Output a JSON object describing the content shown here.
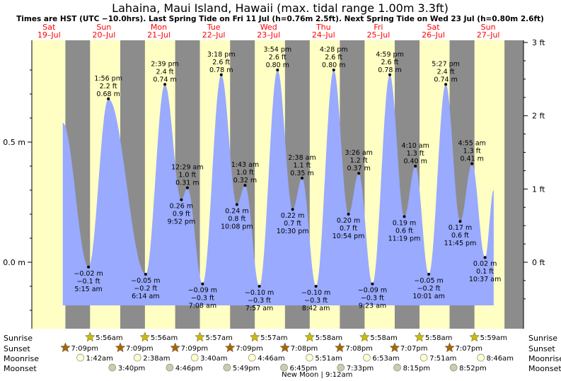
{
  "title": "Lahaina, Maui Island, Hawaii (max. tidal range 1.00m 3.3ft)",
  "subtitle": "Times are HST (UTC −10.0hrs). Last Spring Tide on Fri 11 Jul (h=0.76m 2.5ft). Next Spring Tide on Wed 23 Jul (h=0.80m 2.6ft)",
  "days": [
    {
      "dow": "Sat",
      "date": "19–Jul"
    },
    {
      "dow": "Sun",
      "date": "20–Jul"
    },
    {
      "dow": "Mon",
      "date": "21–Jul"
    },
    {
      "dow": "Tue",
      "date": "22–Jul"
    },
    {
      "dow": "Wed",
      "date": "23–Jul"
    },
    {
      "dow": "Thu",
      "date": "24–Jul"
    },
    {
      "dow": "Fri",
      "date": "25–Jul"
    },
    {
      "dow": "Sat",
      "date": "26–Jul"
    },
    {
      "dow": "Sun",
      "date": "27–Jul"
    }
  ],
  "colors": {
    "day": "#ffffc4",
    "night": "#8c8c8c",
    "water": "#99aaff",
    "sunrise": "#ccbb00",
    "sunset": "#aa6600",
    "day_label": "#ff0000"
  },
  "chart_data": {
    "type": "area",
    "y_unit_left": "m",
    "y_unit_right": "ft",
    "ylim_m": [
      -0.18,
      0.82
    ],
    "left_ticks": [
      "0.5 m",
      "0.0 m"
    ],
    "right_ticks": [
      "3 ft",
      "2 ft",
      "1 ft",
      "0 ft"
    ],
    "extremes": [
      {
        "day": 1,
        "time": "5:15 am",
        "m": "−0.02 m",
        "ft": "−0.1 ft",
        "h": -0.02,
        "type": "low"
      },
      {
        "day": 1,
        "time": "1:56 pm",
        "m": "0.68 m",
        "ft": "2.2 ft",
        "h": 0.68,
        "type": "high"
      },
      {
        "day": 2,
        "time": "6:14 am",
        "m": "−0.05 m",
        "ft": "−0.2 ft",
        "h": -0.05,
        "type": "low"
      },
      {
        "day": 2,
        "time": "2:39 pm",
        "m": "0.74 m",
        "ft": "2.4 ft",
        "h": 0.74,
        "type": "high"
      },
      {
        "day": 2,
        "time": "9:52 pm",
        "m": "0.26 m",
        "ft": "0.9 ft",
        "h": 0.26,
        "type": "low"
      },
      {
        "day": 3,
        "time": "12:29 am",
        "m": "0.31 m",
        "ft": "1.0 ft",
        "h": 0.31,
        "type": "high"
      },
      {
        "day": 3,
        "time": "7:08 am",
        "m": "−0.09 m",
        "ft": "−0.3 ft",
        "h": -0.09,
        "type": "low"
      },
      {
        "day": 3,
        "time": "3:18 pm",
        "m": "0.78 m",
        "ft": "2.6 ft",
        "h": 0.78,
        "type": "high"
      },
      {
        "day": 3,
        "time": "10:08 pm",
        "m": "0.24 m",
        "ft": "0.8 ft",
        "h": 0.24,
        "type": "low"
      },
      {
        "day": 4,
        "time": "1:43 am",
        "m": "0.32 m",
        "ft": "1.0 ft",
        "h": 0.32,
        "type": "high"
      },
      {
        "day": 4,
        "time": "7:57 am",
        "m": "−0.10 m",
        "ft": "−0.3 ft",
        "h": -0.1,
        "type": "low"
      },
      {
        "day": 4,
        "time": "3:54 pm",
        "m": "0.80 m",
        "ft": "2.6 ft",
        "h": 0.8,
        "type": "high"
      },
      {
        "day": 4,
        "time": "10:30 pm",
        "m": "0.22 m",
        "ft": "0.7 ft",
        "h": 0.22,
        "type": "low"
      },
      {
        "day": 5,
        "time": "2:38 am",
        "m": "0.35 m",
        "ft": "1.1 ft",
        "h": 0.35,
        "type": "high"
      },
      {
        "day": 5,
        "time": "8:42 am",
        "m": "−0.10 m",
        "ft": "−0.3 ft",
        "h": -0.1,
        "type": "low"
      },
      {
        "day": 5,
        "time": "4:28 pm",
        "m": "0.80 m",
        "ft": "2.6 ft",
        "h": 0.8,
        "type": "high"
      },
      {
        "day": 5,
        "time": "10:54 pm",
        "m": "0.20 m",
        "ft": "0.7 ft",
        "h": 0.2,
        "type": "low"
      },
      {
        "day": 6,
        "time": "3:26 am",
        "m": "0.37 m",
        "ft": "1.2 ft",
        "h": 0.37,
        "type": "high"
      },
      {
        "day": 6,
        "time": "9:23 am",
        "m": "−0.09 m",
        "ft": "−0.3 ft",
        "h": -0.09,
        "type": "low"
      },
      {
        "day": 6,
        "time": "4:59 pm",
        "m": "0.78 m",
        "ft": "2.6 ft",
        "h": 0.78,
        "type": "high"
      },
      {
        "day": 6,
        "time": "11:19 pm",
        "m": "0.19 m",
        "ft": "0.6 ft",
        "h": 0.19,
        "type": "low"
      },
      {
        "day": 7,
        "time": "4:10 am",
        "m": "0.40 m",
        "ft": "1.3 ft",
        "h": 0.4,
        "type": "high"
      },
      {
        "day": 7,
        "time": "10:01 am",
        "m": "−0.05 m",
        "ft": "−0.2 ft",
        "h": -0.05,
        "type": "low"
      },
      {
        "day": 7,
        "time": "5:27 pm",
        "m": "0.74 m",
        "ft": "2.4 ft",
        "h": 0.74,
        "type": "high"
      },
      {
        "day": 7,
        "time": "11:45 pm",
        "m": "0.17 m",
        "ft": "0.6 ft",
        "h": 0.17,
        "type": "low"
      },
      {
        "day": 8,
        "time": "4:55 am",
        "m": "0.41 m",
        "ft": "1.3 ft",
        "h": 0.41,
        "type": "high"
      },
      {
        "day": 8,
        "time": "10:37 am",
        "m": "0.02 m",
        "ft": "0.1 ft",
        "h": 0.02,
        "type": "low"
      }
    ]
  },
  "rows": {
    "sunrise_label": "Sunrise",
    "sunset_label": "Sunset",
    "moonrise_label": "Moonrise",
    "moonset_label": "Moonset",
    "sunrise": [
      {
        "day": 1,
        "time": "5:56am"
      },
      {
        "day": 2,
        "time": "5:56am"
      },
      {
        "day": 3,
        "time": "5:57am"
      },
      {
        "day": 4,
        "time": "5:57am"
      },
      {
        "day": 5,
        "time": "5:58am"
      },
      {
        "day": 6,
        "time": "5:58am"
      },
      {
        "day": 7,
        "time": "5:58am"
      },
      {
        "day": 8,
        "time": "5:59am"
      }
    ],
    "sunset": [
      {
        "day": 1,
        "time": "7:09pm"
      },
      {
        "day": 2,
        "time": "7:09pm"
      },
      {
        "day": 3,
        "time": "7:09pm"
      },
      {
        "day": 4,
        "time": "7:09pm"
      },
      {
        "day": 5,
        "time": "7:08pm"
      },
      {
        "day": 6,
        "time": "7:08pm"
      },
      {
        "day": 7,
        "time": "7:07pm"
      },
      {
        "day": 8,
        "time": "7:07pm"
      }
    ],
    "moonrise": [
      {
        "day": 1,
        "time": "1:42am"
      },
      {
        "day": 2,
        "time": "2:38am"
      },
      {
        "day": 3,
        "time": "3:40am"
      },
      {
        "day": 4,
        "time": "4:46am"
      },
      {
        "day": 5,
        "time": "5:51am"
      },
      {
        "day": 6,
        "time": "6:53am"
      },
      {
        "day": 7,
        "time": "7:51am"
      },
      {
        "day": 8,
        "time": "8:46am"
      }
    ],
    "moonset": [
      {
        "day": 1,
        "time": "3:40pm"
      },
      {
        "day": 2,
        "time": "4:46pm"
      },
      {
        "day": 3,
        "time": "5:49pm"
      },
      {
        "day": 4,
        "time": "6:45pm"
      },
      {
        "day": 5,
        "time": "7:33pm"
      },
      {
        "day": 6,
        "time": "8:15pm"
      },
      {
        "day": 7,
        "time": "8:52pm"
      }
    ],
    "moon_phase_note": "New Moon | 9:12am"
  }
}
